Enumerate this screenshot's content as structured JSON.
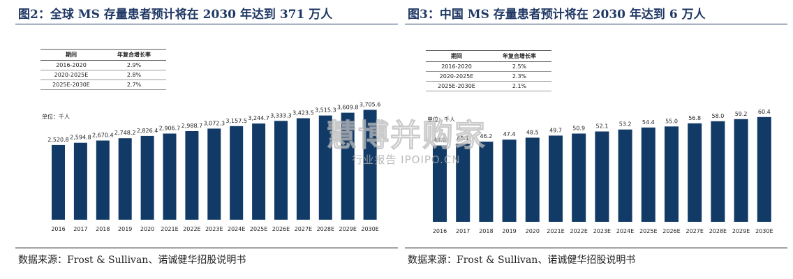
{
  "chart_data": [
    {
      "type": "bar",
      "title": "图2：全球 MS 存量患者预计将在 2030 年达到 371 万人",
      "unit": "单位：千人",
      "categories": [
        "2016",
        "2017",
        "2018",
        "2019",
        "2020",
        "2021E",
        "2022E",
        "2023E",
        "2024E",
        "2025E",
        "2026E",
        "2027E",
        "2028E",
        "2029E",
        "2030E"
      ],
      "values": [
        2520.8,
        2594.8,
        2670.4,
        2748.2,
        2826.4,
        2906.7,
        2988.7,
        3072.3,
        3157.5,
        3244.7,
        3333.3,
        3423.5,
        3515.3,
        3609.8,
        3705.6
      ],
      "value_labels": [
        "2,520.8",
        "2,594.8",
        "2,670.4",
        "2,748.2",
        "2,826.4",
        "2,906.7",
        "2,988.7",
        "3,072.3",
        "3,157.5",
        "3,244.7",
        "3,333.3",
        "3,423.5",
        "3,515.3",
        "3,609.8",
        "3,705.6"
      ],
      "ylim": [
        0,
        4000
      ],
      "bar_color": "#123a66",
      "cagr_table": {
        "headers": [
          "期间",
          "年复合增长率"
        ],
        "rows": [
          [
            "2016-2020",
            "2.9%"
          ],
          [
            "2020-2025E",
            "2.8%"
          ],
          [
            "2025E-2030E",
            "2.7%"
          ]
        ]
      },
      "source": "数据来源：Frost & Sullivan、诺诚健华招股说明书"
    },
    {
      "type": "bar",
      "title": "图3：中国 MS 存量患者预计将在 2030 年达到 6 万人",
      "unit": "单位：千人",
      "categories": [
        "2016",
        "2017",
        "2018",
        "2019",
        "2020",
        "2021E",
        "2022E",
        "2023E",
        "2024E",
        "2025E",
        "2026E",
        "2027E",
        "2028E",
        "2029E",
        "2030E"
      ],
      "values": [
        44.0,
        45.1,
        46.2,
        47.4,
        48.5,
        49.7,
        50.9,
        52.1,
        53.2,
        54.4,
        55.0,
        56.8,
        58.0,
        59.2,
        60.4
      ],
      "value_labels": [
        "44.0",
        "45.1",
        "46.2",
        "47.4",
        "48.5",
        "49.7",
        "50.9",
        "52.1",
        "53.2",
        "54.4",
        "55.0",
        "56.8",
        "58.0",
        "59.2",
        "60.4"
      ],
      "ylim": [
        0,
        72
      ],
      "bar_color": "#123a66",
      "cagr_table": {
        "headers": [
          "期间",
          "年复合增长率"
        ],
        "rows": [
          [
            "2016-2020",
            "2.5%"
          ],
          [
            "2020-2025E",
            "2.3%"
          ],
          [
            "2025E-2030E",
            "2.1%"
          ]
        ]
      },
      "source": "数据来源：Frost & Sullivan、诺诚健华招股说明书"
    }
  ],
  "watermark": {
    "main": "慧博并购家",
    "sub": "行业报告 IPOIPO.CN"
  }
}
